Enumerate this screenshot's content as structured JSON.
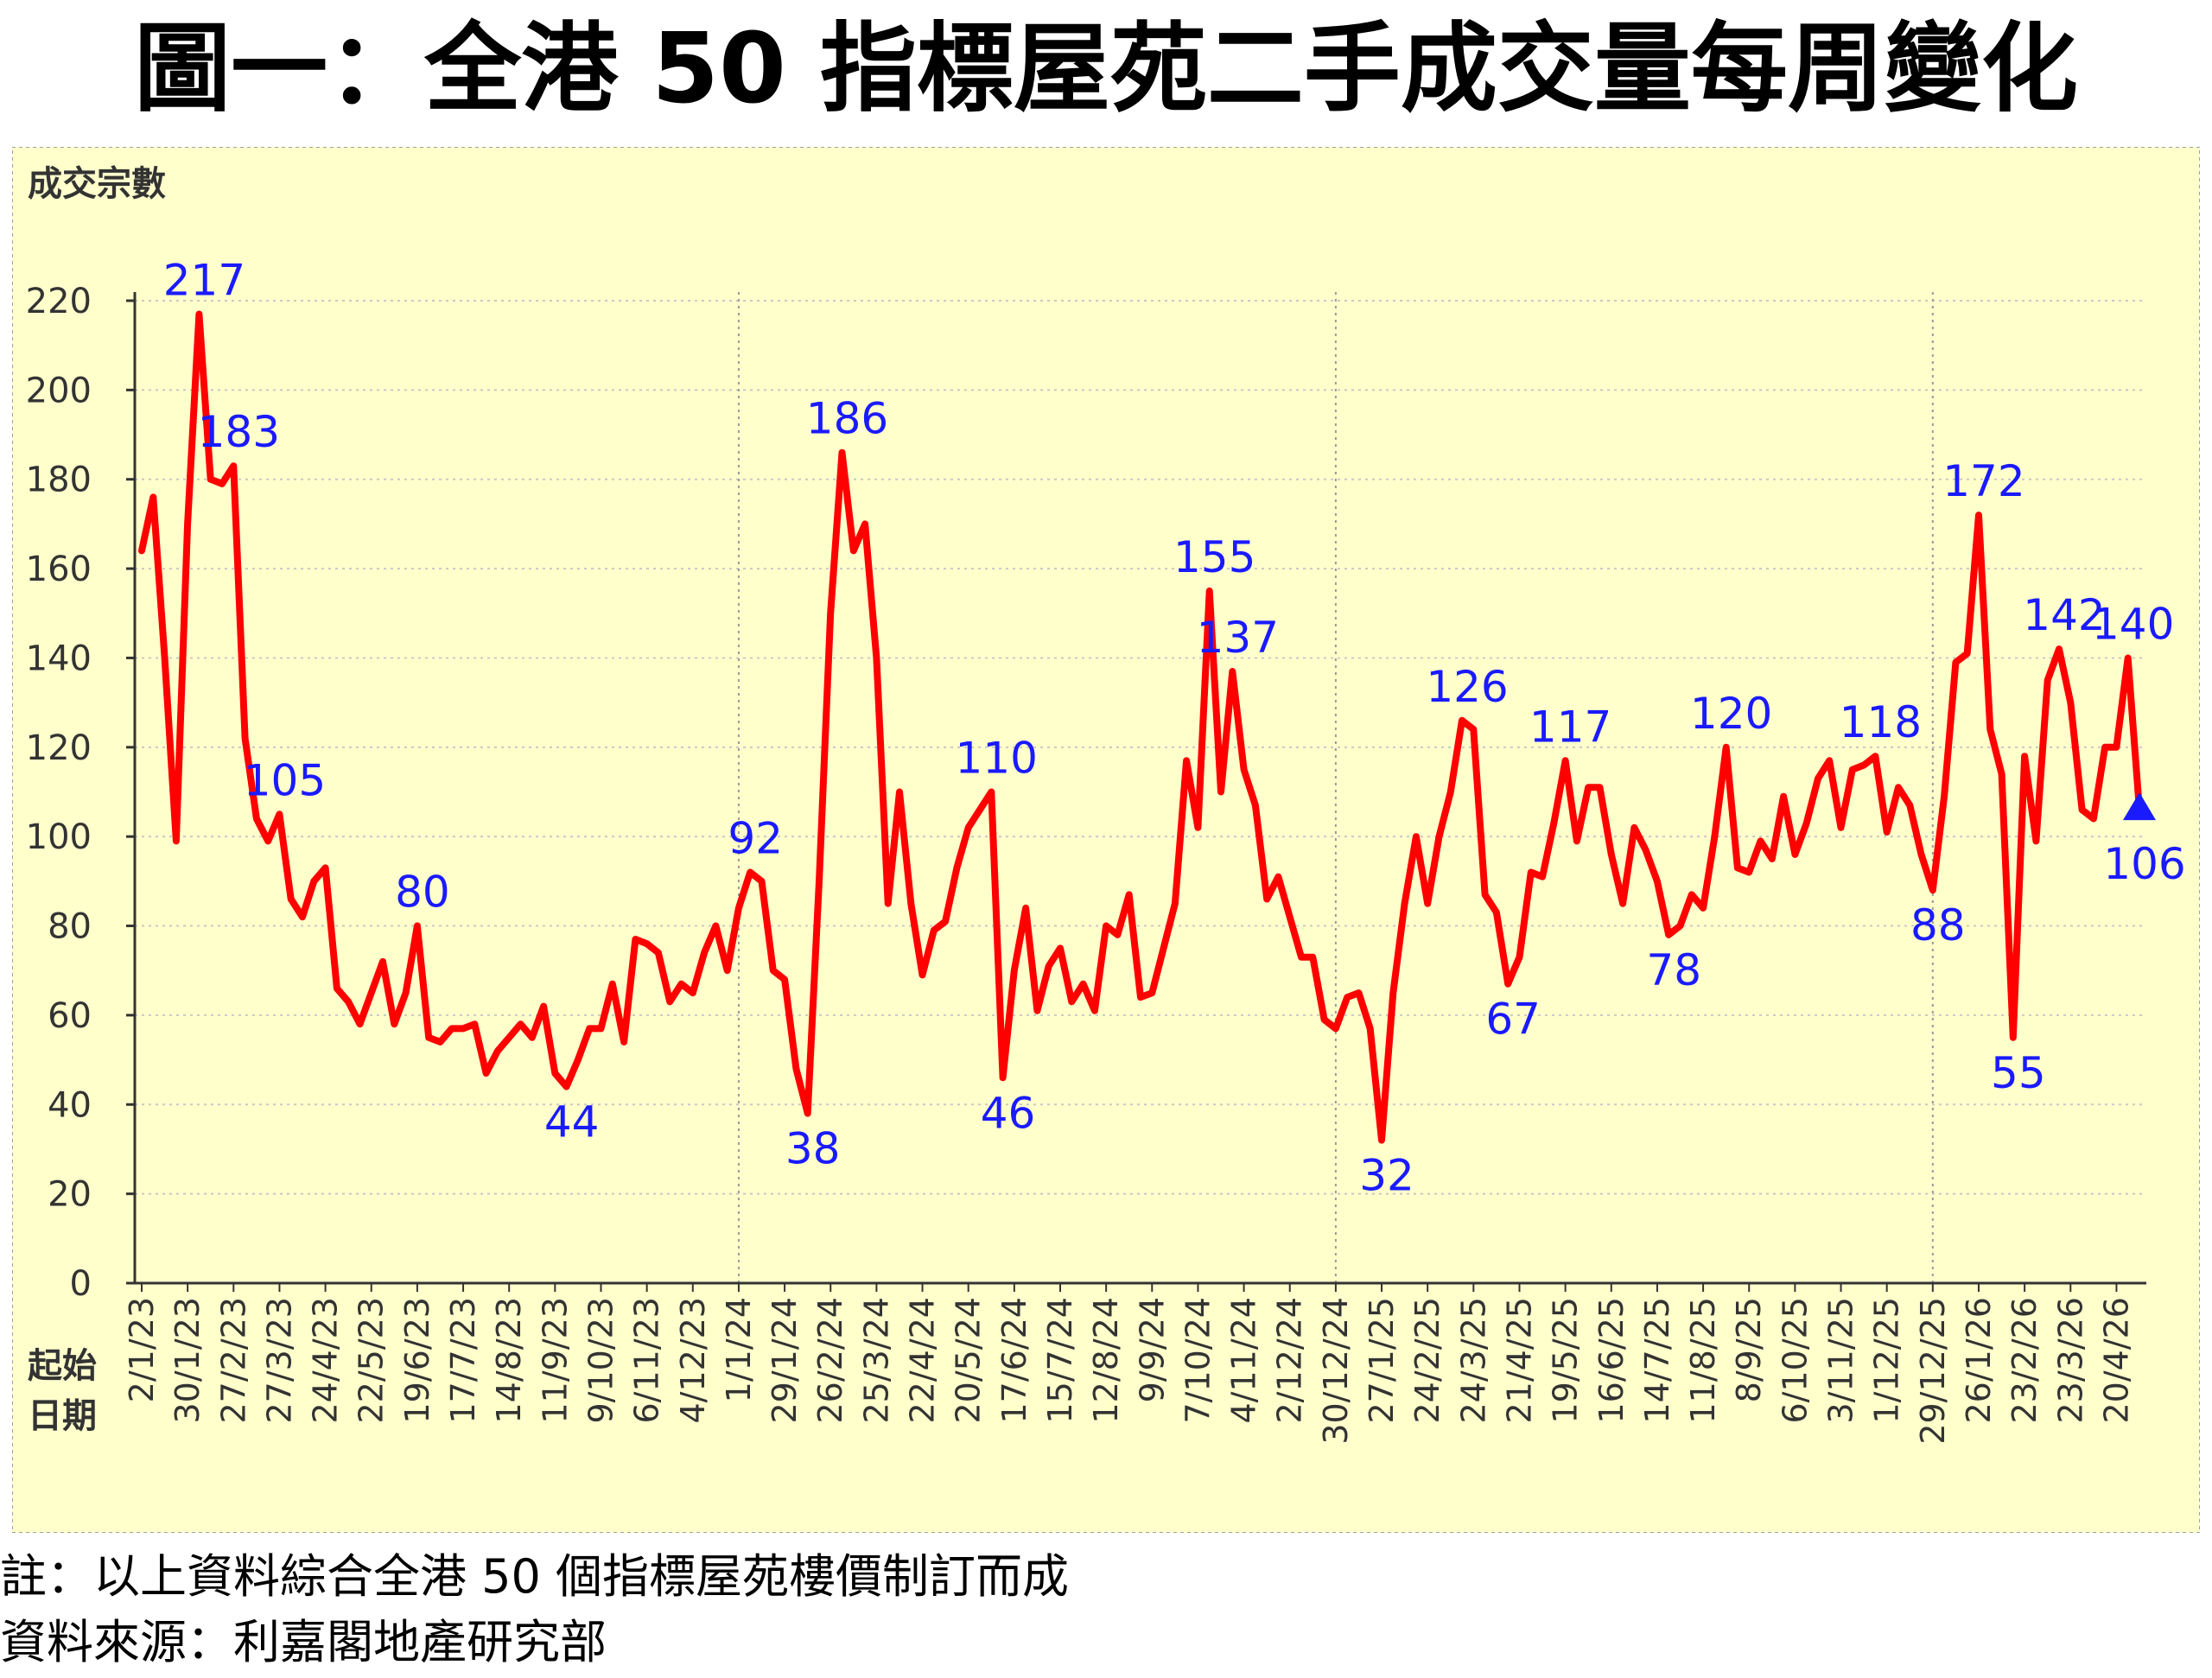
{
  "title": "圖一：全港 50 指標屋苑二手成交量每周變化",
  "footnotes": {
    "note": "註：以上資料綜合全港 50 個指標屋苑樓價制訂而成",
    "source": "資料來源：利嘉閣地產研究部"
  },
  "colors": {
    "line": "#ff0000",
    "labels": "#1a1aff",
    "background": "#ffffcc",
    "grid": "#c8c8c8",
    "marker": "#1a1aff"
  },
  "chart_data": {
    "type": "line",
    "ylabel": "成交宗數",
    "xlabel": "起始日期",
    "ylim": [
      0,
      220
    ],
    "yticks": [
      0,
      20,
      40,
      60,
      80,
      100,
      120,
      140,
      160,
      180,
      200,
      220
    ],
    "grid": "horizontal dotted",
    "tick_labels": [
      "2/1/23",
      "30/1/23",
      "27/2/23",
      "27/3/23",
      "24/4/23",
      "22/5/23",
      "19/6/23",
      "17/7/23",
      "14/8/23",
      "11/9/23",
      "9/10/23",
      "6/11/23",
      "4/12/23",
      "1/1/24",
      "29/1/24",
      "26/2/24",
      "25/3/24",
      "22/4/24",
      "20/5/24",
      "17/6/24",
      "15/7/24",
      "12/8/24",
      "9/9/24",
      "7/10/24",
      "4/11/24",
      "2/12/24",
      "30/12/24",
      "27/1/25",
      "24/2/25",
      "24/3/25",
      "21/4/25",
      "19/5/25",
      "16/6/25",
      "14/7/25",
      "11/8/25",
      "8/9/25",
      "6/10/25",
      "3/11/25",
      "1/12/25",
      "29/12/25",
      "26/1/26",
      "23/2/26",
      "23/3/26",
      "20/4/26"
    ],
    "series": [
      {
        "values": [
          164,
          176,
          140,
          99,
          170,
          217,
          180,
          179,
          183,
          122,
          104,
          99,
          105,
          86,
          82,
          90,
          93,
          66,
          63,
          58,
          65,
          72,
          58,
          65,
          80,
          55,
          54,
          57,
          57,
          58,
          47,
          52,
          55,
          58,
          55,
          62,
          47,
          44,
          50,
          57,
          57,
          67,
          54,
          77,
          76,
          74,
          63,
          67,
          65,
          74,
          80,
          70,
          84,
          92,
          90,
          70,
          68,
          48,
          38,
          90,
          150,
          186,
          164,
          170,
          140,
          85,
          110,
          85,
          69,
          79,
          81,
          93,
          102,
          106,
          110,
          46,
          70,
          84,
          61,
          71,
          75,
          63,
          67,
          61,
          80,
          78,
          87,
          64,
          65,
          75,
          85,
          117,
          102,
          155,
          110,
          137,
          115,
          107,
          86,
          91,
          82,
          73,
          73,
          59,
          57,
          64,
          65,
          57,
          32,
          65,
          85,
          100,
          85,
          100,
          110,
          126,
          124,
          87,
          83,
          67,
          73,
          92,
          91,
          103,
          117,
          99,
          111,
          111,
          96,
          85,
          102,
          97,
          90,
          78,
          80,
          87,
          84,
          100,
          120,
          93,
          92,
          99,
          95,
          109,
          96,
          103,
          113,
          117,
          102,
          115,
          116,
          118,
          101,
          111,
          107,
          96,
          88,
          109,
          139,
          141,
          172,
          124,
          114,
          55,
          118,
          99,
          135,
          142,
          130,
          106,
          104,
          120,
          120,
          140,
          106
        ]
      }
    ],
    "annotations": [
      {
        "value": "217",
        "index": 5
      },
      {
        "value": "183",
        "index": 8
      },
      {
        "value": "105",
        "index": 12
      },
      {
        "value": "80",
        "index": 24
      },
      {
        "value": "44",
        "index": 37
      },
      {
        "value": "92",
        "index": 53
      },
      {
        "value": "38",
        "index": 58
      },
      {
        "value": "186",
        "index": 61
      },
      {
        "value": "110",
        "index": 74
      },
      {
        "value": "46",
        "index": 75
      },
      {
        "value": "155",
        "index": 93
      },
      {
        "value": "137",
        "index": 95
      },
      {
        "value": "32",
        "index": 108
      },
      {
        "value": "126",
        "index": 115
      },
      {
        "value": "67",
        "index": 119
      },
      {
        "value": "117",
        "index": 124
      },
      {
        "value": "78",
        "index": 133
      },
      {
        "value": "120",
        "index": 138
      },
      {
        "value": "118",
        "index": 151
      },
      {
        "value": "88",
        "index": 156
      },
      {
        "value": "172",
        "index": 160
      },
      {
        "value": "55",
        "index": 163
      },
      {
        "value": "142",
        "index": 167
      },
      {
        "value": "140",
        "index": 173
      },
      {
        "value": "106",
        "index": 174
      }
    ],
    "year_dividers": [
      "1/1/24",
      "30/12/24",
      "29/12/25"
    ]
  }
}
